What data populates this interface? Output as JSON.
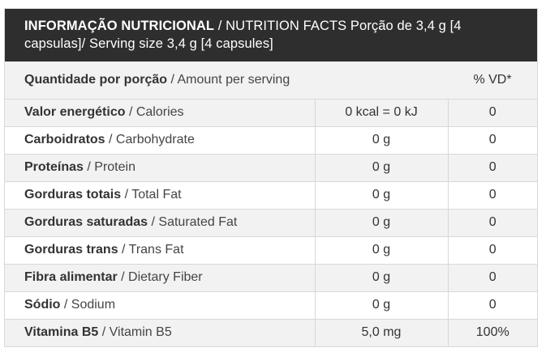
{
  "header": {
    "title_pt": "INFORMAÇÃO NUTRICIONAL",
    "title_rest": "/ NUTRITION FACTS Porção de 3,4 g [4 capsulas]/ Serving size 3,4 g [4 capsules]"
  },
  "columns": {
    "quantity_pt": "Quantidade por porção",
    "quantity_en": "/ Amount per serving",
    "vd": "% VD*"
  },
  "rows": [
    {
      "pt": "Valor energético",
      "en": "/ Calories",
      "amount": "0 kcal = 0 kJ",
      "vd": "0"
    },
    {
      "pt": "Carboidratos",
      "en": "/ Carbohydrate",
      "amount": "0 g",
      "vd": "0"
    },
    {
      "pt": "Proteínas",
      "en": "/ Protein",
      "amount": "0 g",
      "vd": "0"
    },
    {
      "pt": "Gorduras totais",
      "en": "/ Total Fat",
      "amount": "0 g",
      "vd": "0"
    },
    {
      "pt": "Gorduras saturadas",
      "en": "/ Saturated Fat",
      "amount": "0 g",
      "vd": "0"
    },
    {
      "pt": "Gorduras trans",
      "en": "/ Trans Fat",
      "amount": "0 g",
      "vd": "0"
    },
    {
      "pt": "Fibra alimentar",
      "en": "/ Dietary Fiber",
      "amount": "0 g",
      "vd": "0"
    },
    {
      "pt": "Sódio",
      "en": "/ Sodium",
      "amount": "0 g",
      "vd": "0"
    },
    {
      "pt": "Vitamina B5",
      "en": "/ Vitamin B5",
      "amount": "5,0 mg",
      "vd": "100%"
    }
  ]
}
